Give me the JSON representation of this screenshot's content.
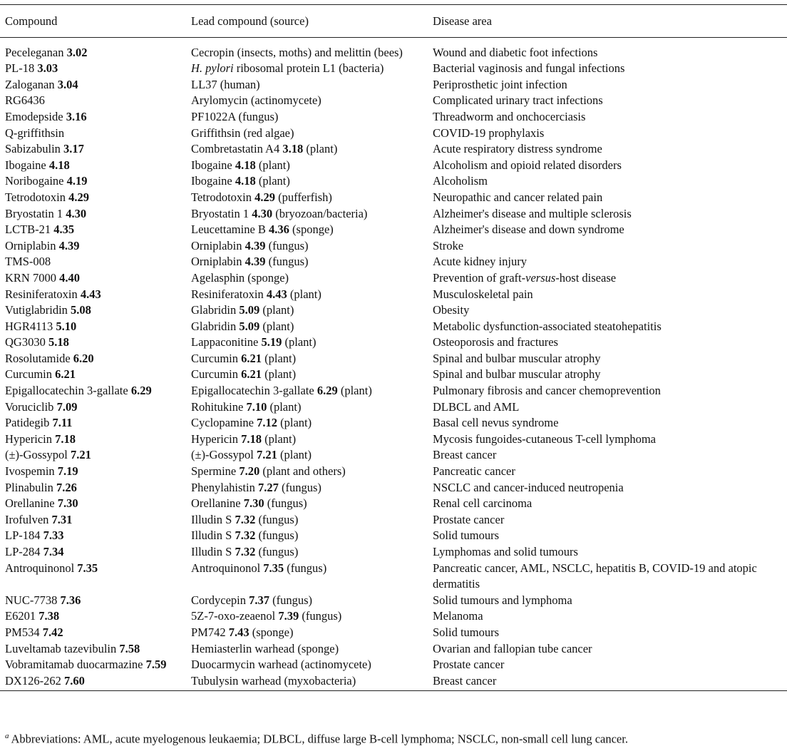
{
  "table": {
    "header": [
      "Compound",
      "Lead compound (source)",
      "Disease area"
    ],
    "rows": [
      [
        [
          "Peceleganan ",
          {
            "b": "3.02"
          }
        ],
        [
          "Cecropin (insects, moths) and melittin (bees)"
        ],
        [
          "Wound and diabetic foot infections"
        ]
      ],
      [
        [
          "PL-18 ",
          {
            "b": "3.03"
          }
        ],
        [
          {
            "i": "H. pylori"
          },
          " ribosomal protein L1 (bacteria)"
        ],
        [
          "Bacterial vaginosis and fungal infections"
        ]
      ],
      [
        [
          "Zaloganan ",
          {
            "b": "3.04"
          }
        ],
        [
          "LL37 (human)"
        ],
        [
          "Periprosthetic joint infection"
        ]
      ],
      [
        [
          "RG6436"
        ],
        [
          "Arylomycin (actinomycete)"
        ],
        [
          "Complicated urinary tract infections"
        ]
      ],
      [
        [
          "Emodepside ",
          {
            "b": "3.16"
          }
        ],
        [
          "PF1022A (fungus)"
        ],
        [
          "Threadworm and onchocerciasis"
        ]
      ],
      [
        [
          "Q-griffithsin"
        ],
        [
          "Griffithsin (red algae)"
        ],
        [
          "COVID-19 prophylaxis"
        ]
      ],
      [
        [
          "Sabizabulin ",
          {
            "b": "3.17"
          }
        ],
        [
          "Combretastatin A4 ",
          {
            "b": "3.18"
          },
          " (plant)"
        ],
        [
          "Acute respiratory distress syndrome"
        ]
      ],
      [
        [
          "Ibogaine ",
          {
            "b": "4.18"
          }
        ],
        [
          "Ibogaine ",
          {
            "b": "4.18"
          },
          " (plant)"
        ],
        [
          "Alcoholism and opioid related disorders"
        ]
      ],
      [
        [
          "Noribogaine ",
          {
            "b": "4.19"
          }
        ],
        [
          "Ibogaine ",
          {
            "b": "4.18"
          },
          " (plant)"
        ],
        [
          "Alcoholism"
        ]
      ],
      [
        [
          "Tetrodotoxin ",
          {
            "b": "4.29"
          }
        ],
        [
          "Tetrodotoxin ",
          {
            "b": "4.29"
          },
          " (pufferfish)"
        ],
        [
          "Neuropathic and cancer related pain"
        ]
      ],
      [
        [
          "Bryostatin 1 ",
          {
            "b": "4.30"
          }
        ],
        [
          "Bryostatin 1 ",
          {
            "b": "4.30"
          },
          " (bryozoan/bacteria)"
        ],
        [
          "Alzheimer's disease and multiple sclerosis"
        ]
      ],
      [
        [
          "LCTB-21 ",
          {
            "b": "4.35"
          }
        ],
        [
          "Leucettamine B ",
          {
            "b": "4.36"
          },
          " (sponge)"
        ],
        [
          "Alzheimer's disease and down syndrome"
        ]
      ],
      [
        [
          "Orniplabin ",
          {
            "b": "4.39"
          }
        ],
        [
          "Orniplabin ",
          {
            "b": "4.39"
          },
          " (fungus)"
        ],
        [
          "Stroke"
        ]
      ],
      [
        [
          "TMS-008"
        ],
        [
          "Orniplabin ",
          {
            "b": "4.39"
          },
          " (fungus)"
        ],
        [
          "Acute kidney injury"
        ]
      ],
      [
        [
          "KRN 7000 ",
          {
            "b": "4.40"
          }
        ],
        [
          "Agelasphin (sponge)"
        ],
        [
          "Prevention of graft-",
          {
            "i": "versus"
          },
          "-host disease"
        ]
      ],
      [
        [
          "Resiniferatoxin ",
          {
            "b": "4.43"
          }
        ],
        [
          "Resiniferatoxin ",
          {
            "b": "4.43"
          },
          " (plant)"
        ],
        [
          "Musculoskeletal pain"
        ]
      ],
      [
        [
          "Vutiglabridin ",
          {
            "b": "5.08"
          }
        ],
        [
          "Glabridin ",
          {
            "b": "5.09"
          },
          " (plant)"
        ],
        [
          "Obesity"
        ]
      ],
      [
        [
          "HGR4113 ",
          {
            "b": "5.10"
          }
        ],
        [
          "Glabridin ",
          {
            "b": "5.09"
          },
          " (plant)"
        ],
        [
          "Metabolic dysfunction-associated steatohepatitis"
        ]
      ],
      [
        [
          "QG3030 ",
          {
            "b": "5.18"
          }
        ],
        [
          "Lappaconitine ",
          {
            "b": "5.19"
          },
          " (plant)"
        ],
        [
          "Osteoporosis and fractures"
        ]
      ],
      [
        [
          "Rosolutamide ",
          {
            "b": "6.20"
          }
        ],
        [
          "Curcumin ",
          {
            "b": "6.21"
          },
          " (plant)"
        ],
        [
          "Spinal and bulbar muscular atrophy"
        ]
      ],
      [
        [
          "Curcumin ",
          {
            "b": "6.21"
          }
        ],
        [
          "Curcumin ",
          {
            "b": "6.21"
          },
          " (plant)"
        ],
        [
          "Spinal and bulbar muscular atrophy"
        ]
      ],
      [
        [
          "Epigallocatechin 3-gallate ",
          {
            "b": "6.29"
          }
        ],
        [
          "Epigallocatechin 3-gallate ",
          {
            "b": "6.29"
          },
          " (plant)"
        ],
        [
          "Pulmonary fibrosis and cancer chemoprevention"
        ]
      ],
      [
        [
          "Voruciclib ",
          {
            "b": "7.09"
          }
        ],
        [
          "Rohitukine ",
          {
            "b": "7.10"
          },
          " (plant)"
        ],
        [
          "DLBCL and AML"
        ]
      ],
      [
        [
          "Patidegib ",
          {
            "b": "7.11"
          }
        ],
        [
          "Cyclopamine ",
          {
            "b": "7.12"
          },
          " (plant)"
        ],
        [
          "Basal cell nevus syndrome"
        ]
      ],
      [
        [
          "Hypericin ",
          {
            "b": "7.18"
          }
        ],
        [
          "Hypericin ",
          {
            "b": "7.18"
          },
          " (plant)"
        ],
        [
          "Mycosis fungoides-cutaneous T-cell lymphoma"
        ]
      ],
      [
        [
          "(±)-Gossypol ",
          {
            "b": "7.21"
          }
        ],
        [
          "(±)-Gossypol ",
          {
            "b": "7.21"
          },
          " (plant)"
        ],
        [
          "Breast cancer"
        ]
      ],
      [
        [
          "Ivospemin ",
          {
            "b": "7.19"
          }
        ],
        [
          "Spermine ",
          {
            "b": "7.20"
          },
          " (plant and others)"
        ],
        [
          "Pancreatic cancer"
        ]
      ],
      [
        [
          "Plinabulin ",
          {
            "b": "7.26"
          }
        ],
        [
          "Phenylahistin ",
          {
            "b": "7.27"
          },
          " (fungus)"
        ],
        [
          "NSCLC and cancer-induced neutropenia"
        ]
      ],
      [
        [
          "Orellanine ",
          {
            "b": "7.30"
          }
        ],
        [
          "Orellanine ",
          {
            "b": "7.30"
          },
          " (fungus)"
        ],
        [
          "Renal cell carcinoma"
        ]
      ],
      [
        [
          "Irofulven ",
          {
            "b": "7.31"
          }
        ],
        [
          "Illudin S ",
          {
            "b": "7.32"
          },
          " (fungus)"
        ],
        [
          "Prostate cancer"
        ]
      ],
      [
        [
          "LP-184 ",
          {
            "b": "7.33"
          }
        ],
        [
          "Illudin S ",
          {
            "b": "7.32"
          },
          " (fungus)"
        ],
        [
          "Solid tumours"
        ]
      ],
      [
        [
          "LP-284 ",
          {
            "b": "7.34"
          }
        ],
        [
          "Illudin S ",
          {
            "b": "7.32"
          },
          " (fungus)"
        ],
        [
          "Lymphomas and solid tumours"
        ]
      ],
      [
        [
          "Antroquinonol ",
          {
            "b": "7.35"
          }
        ],
        [
          "Antroquinonol ",
          {
            "b": "7.35"
          },
          " (fungus)"
        ],
        [
          "Pancreatic cancer, AML, NSCLC, hepatitis B, COVID-19 and atopic dermatitis"
        ]
      ],
      [
        [
          "NUC-7738 ",
          {
            "b": "7.36"
          }
        ],
        [
          "Cordycepin ",
          {
            "b": "7.37"
          },
          " (fungus)"
        ],
        [
          "Solid tumours and lymphoma"
        ]
      ],
      [
        [
          "E6201 ",
          {
            "b": "7.38"
          }
        ],
        [
          "5Z-7-oxo-zeaenol ",
          {
            "b": "7.39"
          },
          " (fungus)"
        ],
        [
          "Melanoma"
        ]
      ],
      [
        [
          "PM534 ",
          {
            "b": "7.42"
          }
        ],
        [
          "PM742 ",
          {
            "b": "7.43"
          },
          " (sponge)"
        ],
        [
          "Solid tumours"
        ]
      ],
      [
        [
          "Luveltamab tazevibulin ",
          {
            "b": "7.58"
          }
        ],
        [
          "Hemiasterlin warhead (sponge)"
        ],
        [
          "Ovarian and fallopian tube cancer"
        ]
      ],
      [
        [
          "Vobramitamab duocarmazine ",
          {
            "b": "7.59"
          }
        ],
        [
          "Duocarmycin warhead (actinomycete)"
        ],
        [
          "Prostate cancer"
        ]
      ],
      [
        [
          "DX126-262 ",
          {
            "b": "7.60"
          }
        ],
        [
          "Tubulysin warhead (myxobacteria)"
        ],
        [
          "Breast cancer"
        ]
      ]
    ]
  },
  "footnote": {
    "mark": "a",
    "text": "Abbreviations: AML, acute myelogenous leukaemia; DLBCL, diffuse large B-cell lymphoma; NSCLC, non-small cell lung cancer."
  }
}
